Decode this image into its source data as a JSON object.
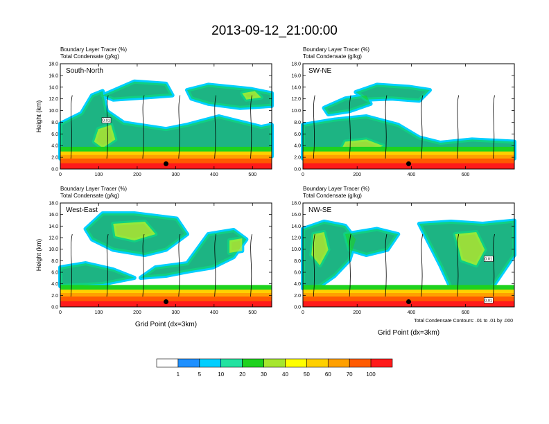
{
  "title": "2013-09-12_21:00:00",
  "colors": {
    "levels": [
      "#ffffff",
      "#1e90ff",
      "#00cfff",
      "#22e2a0",
      "#1ed21e",
      "#a6e62e",
      "#ffff00",
      "#ffd000",
      "#ffa000",
      "#ff5a00",
      "#ff1a1a"
    ],
    "contour": "#000000"
  },
  "colorbar": {
    "labels": [
      "1",
      "5",
      "10",
      "20",
      "30",
      "40",
      "50",
      "60",
      "70",
      "100"
    ]
  },
  "contour_note": "Total Condensate Contours: .01 to .01 by .000",
  "chart_data": [
    {
      "type": "heatmap",
      "panel_label": "South-North",
      "field_line1": "Boundary Layer Tracer   (%)",
      "field_line2": "Total Condensate   (g/kg)",
      "ylabel": "Height (km)",
      "xlabel": "",
      "xlim": [
        0,
        550
      ],
      "ylim": [
        0,
        18
      ],
      "xticks": [
        "0",
        "100",
        "200",
        "300",
        "400",
        "500"
      ],
      "yticks": [
        "0.0",
        "2.0",
        "4.0",
        "6.0",
        "8.0",
        "10.0",
        "12.0",
        "14.0",
        "16.0",
        "18.0"
      ],
      "contour_labels": [
        "0.01"
      ],
      "marker_x": 275
    },
    {
      "type": "heatmap",
      "panel_label": "SW-NE",
      "field_line1": "Boundary Layer Tracer   (%)",
      "field_line2": "Total Condensate   (g/kg)",
      "ylabel": "",
      "xlabel": "",
      "xlim": [
        0,
        780
      ],
      "ylim": [
        0,
        18
      ],
      "xticks": [
        "0",
        "200",
        "400",
        "600"
      ],
      "yticks": [
        "0.0",
        "2.0",
        "4.0",
        "6.0",
        "8.0",
        "10.0",
        "12.0",
        "14.0",
        "16.0",
        "18.0"
      ],
      "contour_labels": [],
      "marker_x": 390
    },
    {
      "type": "heatmap",
      "panel_label": "West-East",
      "field_line1": "Boundary Layer Tracer   (%)",
      "field_line2": "Total Condensate   (g/kg)",
      "ylabel": "Height (km)",
      "xlabel": "Grid Point (dx=3km)",
      "xlim": [
        0,
        550
      ],
      "ylim": [
        0,
        18
      ],
      "xticks": [
        "0",
        "100",
        "200",
        "300",
        "400",
        "500"
      ],
      "yticks": [
        "0.0",
        "2.0",
        "4.0",
        "6.0",
        "8.0",
        "10.0",
        "12.0",
        "14.0",
        "16.0",
        "18.0"
      ],
      "contour_labels": [],
      "marker_x": 275
    },
    {
      "type": "heatmap",
      "panel_label": "NW-SE",
      "field_line1": "Boundary Layer Tracer   (%)",
      "field_line2": "Total Condensate   (g/kg)",
      "ylabel": "",
      "xlabel": "Grid Point (dx=3km)",
      "xlim": [
        0,
        780
      ],
      "ylim": [
        0,
        18
      ],
      "xticks": [
        "0",
        "200",
        "400",
        "600"
      ],
      "yticks": [
        "0.0",
        "2.0",
        "4.0",
        "6.0",
        "8.0",
        "10.0",
        "12.0",
        "14.0",
        "16.0",
        "18.0"
      ],
      "contour_labels": [
        "0.01",
        "0.01"
      ],
      "marker_x": 390
    }
  ]
}
